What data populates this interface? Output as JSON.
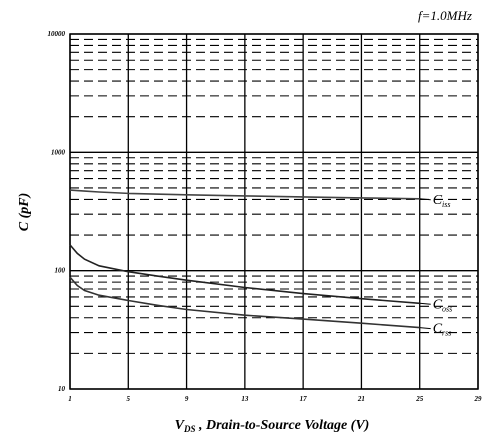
{
  "chart_data": {
    "type": "line",
    "annotation": "f=1.0MHz",
    "xlabel_main": "V",
    "xlabel_sub": "DS",
    "xlabel_rest": " , Drain-to-Source Voltage (V)",
    "ylabel": "C (pF)",
    "x_ticks": [
      "1",
      "5",
      "9",
      "13",
      "17",
      "21",
      "25",
      "29"
    ],
    "y_ticks": [
      "10",
      "100",
      "1000",
      "10000"
    ],
    "xlim": [
      1,
      29
    ],
    "ylim": [
      10,
      10000
    ],
    "y_scale": "log",
    "grid": true,
    "series": [
      {
        "name_main": "C",
        "name_sub": "iss",
        "color": "#444444",
        "points": [
          [
            1,
            480
          ],
          [
            2,
            470
          ],
          [
            3,
            462
          ],
          [
            5,
            450
          ],
          [
            9,
            438
          ],
          [
            13,
            428
          ],
          [
            17,
            420
          ],
          [
            21,
            412
          ],
          [
            25,
            405
          ]
        ]
      },
      {
        "name_main": "C",
        "name_sub": "oss",
        "color": "#222222",
        "points": [
          [
            1,
            165
          ],
          [
            1.5,
            140
          ],
          [
            2,
            125
          ],
          [
            3,
            110
          ],
          [
            5,
            98
          ],
          [
            7,
            90
          ],
          [
            9,
            83
          ],
          [
            13,
            72
          ],
          [
            17,
            64
          ],
          [
            21,
            58
          ],
          [
            25,
            53
          ]
        ]
      },
      {
        "name_main": "C",
        "name_sub": "rss",
        "color": "#333333",
        "points": [
          [
            1,
            88
          ],
          [
            1.5,
            75
          ],
          [
            2,
            68
          ],
          [
            3,
            62
          ],
          [
            5,
            56
          ],
          [
            7,
            51
          ],
          [
            9,
            47
          ],
          [
            13,
            42
          ],
          [
            17,
            39
          ],
          [
            21,
            36
          ],
          [
            25,
            33
          ]
        ]
      }
    ]
  }
}
